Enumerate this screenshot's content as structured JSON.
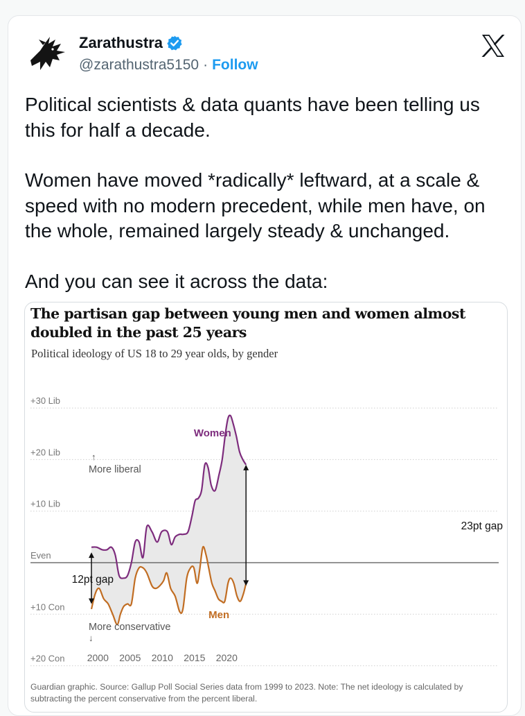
{
  "tweet": {
    "author_name": "Zarathustra",
    "handle": "@zarathustra5150",
    "separator": "·",
    "follow_label": "Follow",
    "paragraphs": [
      "Political scientists & data quants have been telling us this for half a decade.",
      "Women have moved *radically* leftward, at a scale & speed with no modern precedent, while men have, on the whole, remained largely steady & unchanged.",
      "And you can see it across the data:"
    ],
    "icons": {
      "verified": "verified-badge-icon",
      "platform": "x-logo-icon",
      "avatar": "raven-avatar"
    },
    "colors": {
      "accent": "#1d9bf0",
      "text": "#0f1419",
      "muted": "#536471"
    }
  },
  "chart": {
    "title": "The partisan gap between young men and women almost doubled in the past 25 years",
    "subtitle": "Political ideology of US 18 to 29 year olds, by gender",
    "footnote": "Guardian graphic. Source: Gallup Poll Social Series data from 1999 to 2023. Note: The net ideology is calculated by subtracting the percent conservative from the percent liberal.",
    "annotations": {
      "more_liberal": "More liberal",
      "more_conservative": "More conservative",
      "gap_start": "12pt gap",
      "gap_end": "23pt gap",
      "up_arrow": "↑",
      "down_arrow": "↓"
    }
  },
  "chart_data": {
    "type": "line",
    "title": "The partisan gap between young men and women almost doubled in the past 25 years",
    "subtitle": "Political ideology of US 18 to 29 year olds, by gender",
    "ylim": [
      -20,
      30
    ],
    "xlim": [
      1999,
      2023
    ],
    "y_ticks": [
      {
        "value": 30,
        "label": "+30 Lib"
      },
      {
        "value": 20,
        "label": "+20 Lib"
      },
      {
        "value": 10,
        "label": "+10 Lib"
      },
      {
        "value": 0,
        "label": "Even"
      },
      {
        "value": -10,
        "label": "+10 Con"
      },
      {
        "value": -20,
        "label": "+20 Con"
      }
    ],
    "x_ticks": [
      2000,
      2005,
      2010,
      2015,
      2020
    ],
    "grid": "horizontal dotted",
    "gap_shading": true,
    "series": [
      {
        "name": "Women",
        "color": "#7d2c7d",
        "x": [
          1999,
          1999.8,
          2000.7,
          2001.4,
          2002.1,
          2002.7,
          2003.3,
          2004.0,
          2004.6,
          2005.2,
          2005.8,
          2006.4,
          2007.0,
          2007.6,
          2008.4,
          2009.2,
          2009.9,
          2010.8,
          2011.4,
          2012.0,
          2012.7,
          2013.3,
          2014.0,
          2014.6,
          2015.1,
          2015.6,
          2016.1,
          2016.6,
          2017.1,
          2017.6,
          2018.2,
          2018.8,
          2019.3,
          2019.8,
          2020.2,
          2020.6,
          2021.0,
          2021.5,
          2022.0,
          2022.5,
          2023
        ],
        "y": [
          3,
          3,
          2.5,
          2.5,
          3,
          1.5,
          -2.5,
          -3,
          -2.5,
          0,
          4,
          4,
          1,
          7,
          6,
          4,
          6,
          6,
          3.5,
          5,
          5.5,
          5.5,
          6,
          9,
          12,
          12.5,
          14,
          19,
          18.5,
          15,
          14,
          17,
          20,
          25,
          28,
          28.5,
          27,
          24.5,
          21.5,
          20,
          19
        ]
      },
      {
        "name": "Men",
        "color": "#c16d22",
        "x": [
          1999,
          1999.6,
          2000.2,
          2000.9,
          2001.6,
          2002.3,
          2003.0,
          2003.5,
          2004.0,
          2004.6,
          2005.2,
          2005.8,
          2006.4,
          2007.0,
          2007.6,
          2008.4,
          2009.0,
          2009.6,
          2010.2,
          2010.7,
          2011.3,
          2012.0,
          2012.7,
          2013.2,
          2013.8,
          2014.4,
          2014.9,
          2015.4,
          2015.8,
          2016.3,
          2016.8,
          2017.2,
          2017.7,
          2018.2,
          2018.7,
          2019.2,
          2019.7,
          2020.2,
          2020.6,
          2021.1,
          2021.6,
          2022.1,
          2022.6,
          2023
        ],
        "y": [
          -9,
          -6,
          -5,
          -7,
          -8,
          -10,
          -12,
          -10,
          -8.5,
          -8,
          -8,
          -3,
          -1,
          -1,
          -2,
          -4.5,
          -5,
          -4.5,
          -3.5,
          -2,
          -5,
          -6.5,
          -9.5,
          -9,
          -3,
          -1,
          -1,
          -4,
          -1.5,
          3,
          1.5,
          -1,
          -4,
          -5.5,
          -7,
          -7.5,
          -7.5,
          -4,
          -3,
          -4,
          -6.5,
          -7.5,
          -6,
          -4
        ]
      }
    ]
  }
}
